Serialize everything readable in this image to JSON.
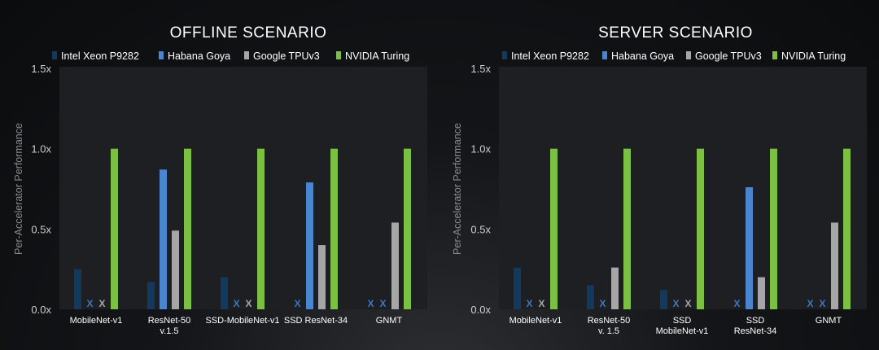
{
  "colors": {
    "intel": "#12395e",
    "habana": "#4a86d0",
    "google": "#a6a6a6",
    "nvidia": "#7bc043",
    "marker": "#3a78c0",
    "panel": "#1e1f22",
    "grid": "#4a4b50",
    "text": "#ffffff",
    "axis_text": "#cfcfcf",
    "ylabel_text": "#8a8a8a"
  },
  "chart_data": [
    {
      "type": "bar",
      "title": "OFFLINE SCENARIO",
      "ylabel": "Per-Accelerator Performance",
      "xlabel": "",
      "ylim": [
        0,
        1.5
      ],
      "yticks": [
        0,
        0.5,
        1.0,
        1.5
      ],
      "ytick_labels": [
        "0.0x",
        "0.5x",
        "1.0x",
        "1.5x"
      ],
      "grid": false,
      "legend_placement": "top",
      "legend": [
        "Intel Xeon P9282",
        "Habana Goya",
        "Google TPUv3",
        "NVIDIA Turing"
      ],
      "categories": [
        "MobileNet-v1",
        "ResNet-50 v.1.5",
        "SSD-MobileNet-v1",
        "SSD ResNet-34",
        "GNMT"
      ],
      "category_labels": [
        [
          "MobileNet-v1"
        ],
        [
          "ResNet-50",
          "v.1.5"
        ],
        [
          "SSD-MobileNet-v1"
        ],
        [
          "SSD ResNet-34"
        ],
        [
          "GNMT"
        ]
      ],
      "series": [
        {
          "name": "Intel Xeon P9282",
          "values": [
            0.25,
            0.17,
            0.2,
            null,
            null
          ],
          "missing_marker": [
            false,
            false,
            false,
            true,
            true
          ]
        },
        {
          "name": "Habana Goya",
          "values": [
            null,
            0.87,
            null,
            0.79,
            null
          ],
          "missing_marker": [
            true,
            false,
            true,
            false,
            true
          ]
        },
        {
          "name": "Google TPUv3",
          "values": [
            null,
            0.49,
            null,
            0.4,
            0.54
          ],
          "missing_marker": [
            true,
            false,
            true,
            false,
            false
          ]
        },
        {
          "name": "NVIDIA Turing",
          "values": [
            1.0,
            1.0,
            1.0,
            1.0,
            1.0
          ],
          "missing_marker": [
            false,
            false,
            false,
            false,
            false
          ]
        }
      ],
      "missing_symbol": "X"
    },
    {
      "type": "bar",
      "title": "SERVER SCENARIO",
      "ylabel": "Per-Accelerator Performance",
      "xlabel": "",
      "ylim": [
        0,
        1.5
      ],
      "yticks": [
        0,
        0.5,
        1.0,
        1.5
      ],
      "ytick_labels": [
        "0.0x",
        "0.5x",
        "1.0x",
        "1.5x"
      ],
      "grid": false,
      "legend_placement": "top",
      "legend": [
        "Intel Xeon P9282",
        "Habana Goya",
        "Google TPUv3",
        "NVIDIA Turing"
      ],
      "categories": [
        "MobileNet-v1",
        "ResNet-50 v. 1.5",
        "SSD MobileNet-v1",
        "SSD ResNet-34",
        "GNMT"
      ],
      "category_labels": [
        [
          "MobileNet-v1"
        ],
        [
          "ResNet-50",
          "v. 1.5"
        ],
        [
          "SSD",
          "MobileNet-v1"
        ],
        [
          "SSD",
          "ResNet-34"
        ],
        [
          "GNMT"
        ]
      ],
      "series": [
        {
          "name": "Intel Xeon P9282",
          "values": [
            0.26,
            0.15,
            0.12,
            null,
            null
          ],
          "missing_marker": [
            false,
            false,
            false,
            true,
            true
          ]
        },
        {
          "name": "Habana Goya",
          "values": [
            null,
            null,
            null,
            0.76,
            null
          ],
          "missing_marker": [
            true,
            true,
            true,
            false,
            true
          ]
        },
        {
          "name": "Google TPUv3",
          "values": [
            null,
            0.26,
            null,
            0.2,
            0.54
          ],
          "missing_marker": [
            true,
            false,
            true,
            false,
            false
          ]
        },
        {
          "name": "NVIDIA Turing",
          "values": [
            1.0,
            1.0,
            1.0,
            1.0,
            1.0
          ],
          "missing_marker": [
            false,
            false,
            false,
            false,
            false
          ]
        }
      ],
      "missing_symbol": "X"
    }
  ]
}
